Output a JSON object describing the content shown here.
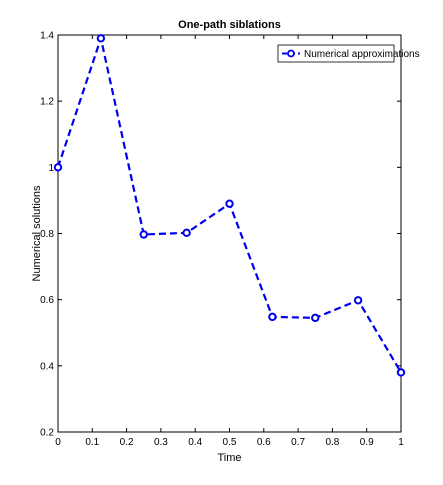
{
  "chart_data": {
    "type": "line",
    "title": "One-path siblations",
    "xlabel": "Time",
    "ylabel": "Numerical solutions",
    "xlim": [
      0,
      1
    ],
    "ylim": [
      0.2,
      1.4
    ],
    "xticks": [
      "0",
      "0.1",
      "0.2",
      "0.3",
      "0.4",
      "0.5",
      "0.6",
      "0.7",
      "0.8",
      "0.9",
      "1"
    ],
    "yticks": [
      "0.2",
      "0.4",
      "0.6",
      "0.8",
      "1",
      "1.2",
      "1.4"
    ],
    "grid": false,
    "legend_position": "top-right",
    "series": [
      {
        "name": "Numerical approximations",
        "color": "#0000ee",
        "line_style": "dashed",
        "marker": "circle",
        "x": [
          0,
          0.125,
          0.25,
          0.375,
          0.5,
          0.625,
          0.75,
          0.875,
          1
        ],
        "y": [
          1.0,
          1.39,
          0.797,
          0.802,
          0.89,
          0.548,
          0.545,
          0.598,
          0.38
        ]
      }
    ]
  }
}
